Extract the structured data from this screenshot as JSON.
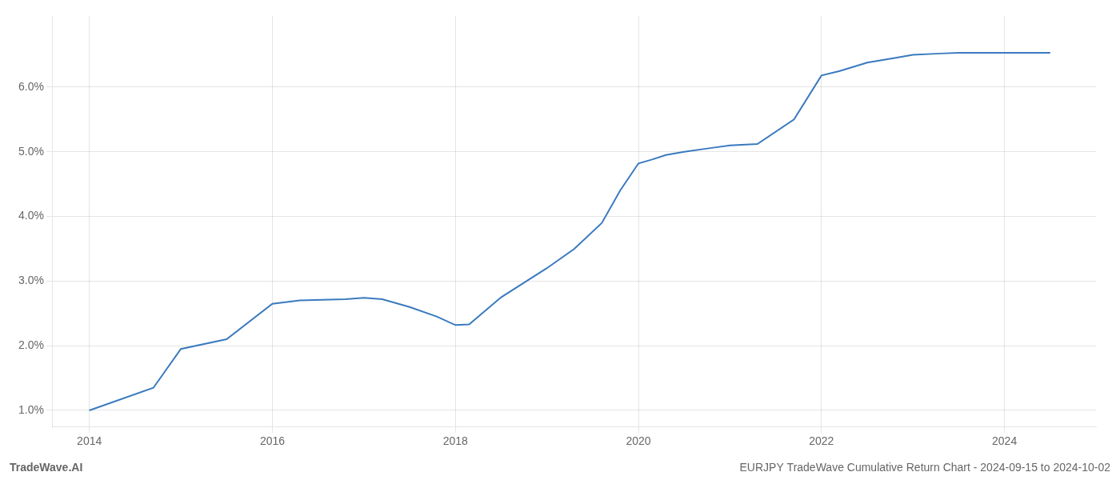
{
  "chart_data": {
    "type": "line",
    "x": [
      2014.0,
      2014.7,
      2015.0,
      2015.5,
      2016.0,
      2016.3,
      2016.8,
      2017.0,
      2017.2,
      2017.5,
      2017.8,
      2018.0,
      2018.15,
      2018.5,
      2019.0,
      2019.3,
      2019.6,
      2019.8,
      2020.0,
      2020.15,
      2020.3,
      2020.5,
      2020.8,
      2021.0,
      2021.3,
      2021.7,
      2022.0,
      2022.2,
      2022.5,
      2022.8,
      2023.0,
      2023.3,
      2023.5,
      2023.8,
      2024.0,
      2024.5
    ],
    "values": [
      1.0,
      1.35,
      1.95,
      2.1,
      2.65,
      2.7,
      2.72,
      2.74,
      2.72,
      2.6,
      2.45,
      2.32,
      2.33,
      2.75,
      3.2,
      3.5,
      3.9,
      4.4,
      4.82,
      4.88,
      4.95,
      5.0,
      5.06,
      5.1,
      5.12,
      5.5,
      6.18,
      6.25,
      6.38,
      6.45,
      6.5,
      6.52,
      6.53,
      6.53,
      6.53,
      6.53
    ],
    "color": "#3a7abf",
    "xlim": [
      2013.6,
      2025.0
    ],
    "ylim": [
      0.75,
      7.1
    ],
    "xticks": [
      2014,
      2016,
      2018,
      2020,
      2022,
      2024
    ],
    "yticks": [
      {
        "value": 1.0,
        "label": "1.0%"
      },
      {
        "value": 2.0,
        "label": "2.0%"
      },
      {
        "value": 3.0,
        "label": "3.0%"
      },
      {
        "value": 4.0,
        "label": "4.0%"
      },
      {
        "value": 5.0,
        "label": "5.0%"
      },
      {
        "value": 6.0,
        "label": "6.0%"
      }
    ],
    "grid": true,
    "annotations": [
      "TradeWave.AI",
      "EURJPY TradeWave Cumulative Return Chart - 2024-09-15 to 2024-10-02"
    ]
  }
}
